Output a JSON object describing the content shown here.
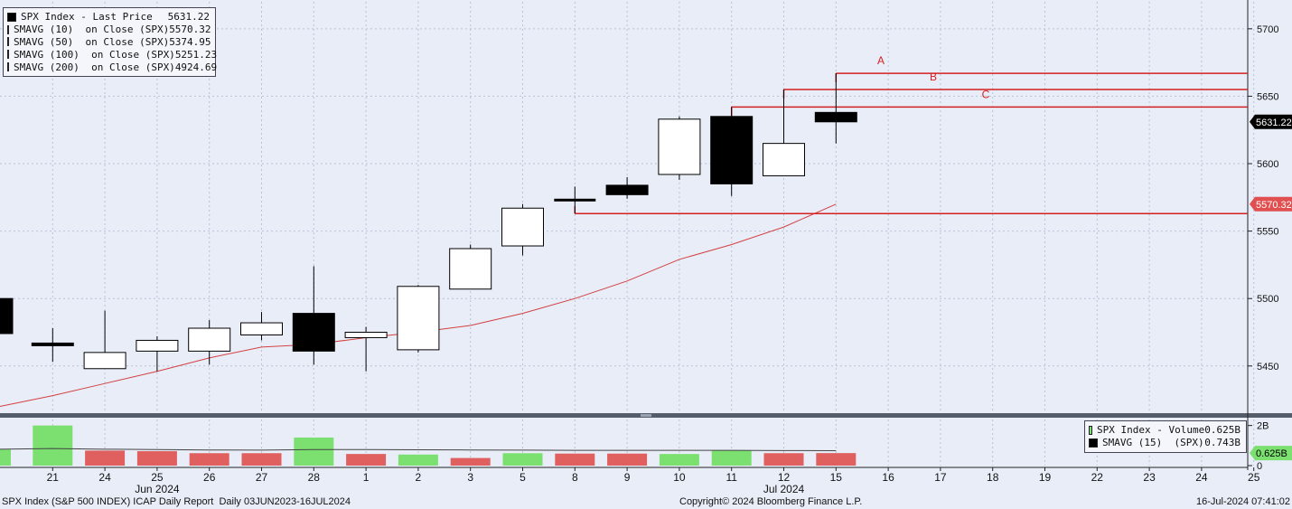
{
  "chart_data": {
    "type": "candlestick",
    "price_panel": {
      "ylim": [
        5415,
        5720
      ],
      "y_ticks": [
        5450,
        5500,
        5550,
        5600,
        5650,
        5700
      ],
      "candles": [
        {
          "x": "20",
          "open": 5500,
          "high": 5500,
          "low": 5474,
          "close": 5474
        },
        {
          "x": "21",
          "open": 5467,
          "high": 5478,
          "low": 5453,
          "close": 5465
        },
        {
          "x": "24",
          "open": 5448,
          "high": 5491,
          "low": 5448,
          "close": 5460
        },
        {
          "x": "25",
          "open": 5461,
          "high": 5472,
          "low": 5446,
          "close": 5469
        },
        {
          "x": "26",
          "open": 5461,
          "high": 5484,
          "low": 5451,
          "close": 5478
        },
        {
          "x": "27",
          "open": 5473,
          "high": 5490,
          "low": 5469,
          "close": 5482
        },
        {
          "x": "28",
          "open": 5489,
          "high": 5524,
          "low": 5451,
          "close": 5461
        },
        {
          "x": "1",
          "open": 5471,
          "high": 5479,
          "low": 5446,
          "close": 5475
        },
        {
          "x": "2",
          "open": 5462,
          "high": 5510,
          "low": 5460,
          "close": 5509
        },
        {
          "x": "3",
          "open": 5507,
          "high": 5540,
          "low": 5507,
          "close": 5537
        },
        {
          "x": "5",
          "open": 5539,
          "high": 5570,
          "low": 5532,
          "close": 5567
        },
        {
          "x": "8",
          "open": 5573,
          "high": 5583,
          "low": 5563,
          "close": 5572
        },
        {
          "x": "9",
          "open": 5584,
          "high": 5590,
          "low": 5574,
          "close": 5577
        },
        {
          "x": "10",
          "open": 5592,
          "high": 5635,
          "low": 5588,
          "close": 5633
        },
        {
          "x": "11",
          "open": 5635,
          "high": 5642,
          "low": 5576,
          "close": 5585
        },
        {
          "x": "12",
          "open": 5591,
          "high": 5655,
          "low": 5591,
          "close": 5615
        },
        {
          "x": "15",
          "open": 5638,
          "high": 5667,
          "low": 5615,
          "close": 5631
        }
      ],
      "sma10": [
        {
          "x": "20",
          "y": 5420
        },
        {
          "x": "21",
          "y": 5428
        },
        {
          "x": "24",
          "y": 5437
        },
        {
          "x": "25",
          "y": 5446
        },
        {
          "x": "26",
          "y": 5456
        },
        {
          "x": "27",
          "y": 5464
        },
        {
          "x": "28",
          "y": 5466
        },
        {
          "x": "1",
          "y": 5471
        },
        {
          "x": "2",
          "y": 5475
        },
        {
          "x": "3",
          "y": 5480
        },
        {
          "x": "5",
          "y": 5489
        },
        {
          "x": "8",
          "y": 5500
        },
        {
          "x": "9",
          "y": 5513
        },
        {
          "x": "10",
          "y": 5529
        },
        {
          "x": "11",
          "y": 5540
        },
        {
          "x": "12",
          "y": 5553
        },
        {
          "x": "15",
          "y": 5570
        }
      ],
      "support_line": {
        "from": "8",
        "y": 5563
      },
      "resistance_lines": [
        {
          "label": "A",
          "from": "15",
          "y": 5667
        },
        {
          "label": "B",
          "from": "12",
          "y": 5655
        },
        {
          "label": "C",
          "from": "11",
          "y": 5642
        }
      ],
      "price_tags": [
        {
          "text": "5631.22",
          "y": 5631,
          "color": "#000000"
        },
        {
          "text": "5570.32",
          "y": 5570,
          "color": "#e05050"
        }
      ]
    },
    "volume_panel": {
      "ylim": [
        0,
        2.3
      ],
      "y_ticks": [
        {
          "label": "2B",
          "value": 2
        },
        {
          "label": "0",
          "value": 0
        }
      ],
      "bars": [
        {
          "x": "20",
          "value": 0.8,
          "up": true
        },
        {
          "x": "21",
          "value": 2.0,
          "up": true
        },
        {
          "x": "24",
          "value": 0.75,
          "up": false
        },
        {
          "x": "25",
          "value": 0.72,
          "up": false
        },
        {
          "x": "26",
          "value": 0.62,
          "up": false
        },
        {
          "x": "27",
          "value": 0.62,
          "up": false
        },
        {
          "x": "28",
          "value": 1.4,
          "up": true
        },
        {
          "x": "1",
          "value": 0.58,
          "up": false
        },
        {
          "x": "2",
          "value": 0.55,
          "up": true
        },
        {
          "x": "3",
          "value": 0.38,
          "up": false
        },
        {
          "x": "5",
          "value": 0.62,
          "up": true
        },
        {
          "x": "8",
          "value": 0.6,
          "up": false
        },
        {
          "x": "9",
          "value": 0.6,
          "up": false
        },
        {
          "x": "10",
          "value": 0.58,
          "up": true
        },
        {
          "x": "11",
          "value": 0.75,
          "up": true
        },
        {
          "x": "12",
          "value": 0.62,
          "up": false
        },
        {
          "x": "15",
          "value": 0.625,
          "up": false
        }
      ],
      "sma15": [
        0.82,
        0.85,
        0.82,
        0.8,
        0.78,
        0.77,
        0.8,
        0.8,
        0.79,
        0.78,
        0.77,
        0.76,
        0.76,
        0.76,
        0.76,
        0.75,
        0.743
      ],
      "price_tag": {
        "text": "0.625B",
        "value": 0.625
      }
    },
    "x_ticks": [
      "21",
      "24",
      "25",
      "26",
      "27",
      "28",
      "1",
      "2",
      "3",
      "5",
      "8",
      "9",
      "10",
      "11",
      "12",
      "15",
      "16",
      "17",
      "18",
      "19",
      "22",
      "23",
      "24",
      "25"
    ],
    "month_labels": [
      {
        "text": "Jun 2024",
        "at": "25"
      },
      {
        "text": "Jul 2024",
        "at": "12"
      }
    ]
  },
  "legend_top": [
    {
      "name": "SPX Index - Last Price",
      "value": "5631.22",
      "color": "#000000"
    },
    {
      "name": "SMAVG (10)  on Close (SPX)",
      "value": "5570.32",
      "color": "#e05050"
    },
    {
      "name": "SMAVG (50)  on Close (SPX)",
      "value": "5374.95",
      "color": "#5a6888"
    },
    {
      "name": "SMAVG (100)  on Close (SPX)",
      "value": "5251.23",
      "color": "#000000"
    },
    {
      "name": "SMAVG (200)  on Close (SPX)",
      "value": "4924.69",
      "color": "#7ce070"
    }
  ],
  "legend_volume": [
    {
      "name": "SPX Index - Volume",
      "value": "0.625B",
      "color": "#7ce070"
    },
    {
      "name": "SMAVG (15)  (SPX)",
      "value": "0.743B",
      "color": "#000000"
    }
  ],
  "footer": {
    "left": "SPX Index (S&P 500 INDEX) ICAP Daily Report  Daily 03JUN2023-16JUL2024",
    "center": "Copyright© 2024 Bloomberg Finance L.P.",
    "right": "16-Jul-2024 07:41:02"
  },
  "colors": {
    "background": "#e8edf8",
    "line_red": "#d42020",
    "vol_up": "#7ce070",
    "vol_down": "#e06060"
  }
}
